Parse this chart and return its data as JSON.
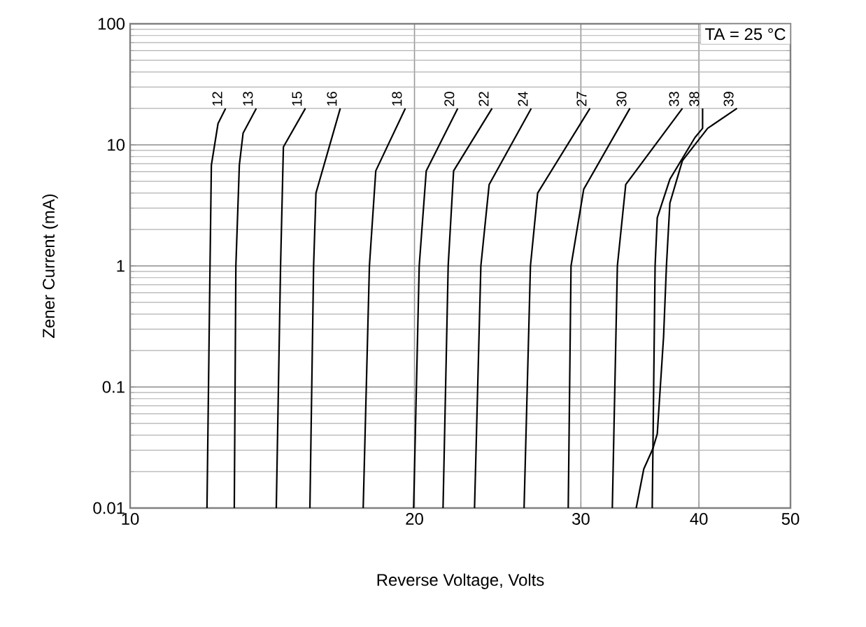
{
  "chart_data": {
    "type": "line",
    "xlabel": "Reverse Voltage, Volts",
    "ylabel": "Zener Current (mA)",
    "annotations": [
      "TA = 25 °C"
    ],
    "log": "xy",
    "grid": true,
    "marker": "none",
    "line_style": "solid",
    "xlim": [
      10,
      50
    ],
    "xticks": [
      10,
      20,
      30,
      40,
      50
    ],
    "ylim": [
      0.01,
      100
    ],
    "yticks": [
      0.01,
      0.1,
      1,
      10,
      100
    ],
    "series": [
      {
        "name": "12",
        "color": "#000000",
        "x": [
          12.06,
          12.15,
          12.19,
          12.39,
          12.62
        ],
        "values": [
          0.01,
          1,
          6.8,
          15,
          20
        ]
      },
      {
        "name": "13",
        "color": "#000000",
        "x": [
          12.89,
          12.94,
          13.05,
          13.17,
          13.6
        ],
        "values": [
          0.01,
          1,
          6.8,
          12.5,
          20
        ]
      },
      {
        "name": "15",
        "color": "#000000",
        "x": [
          14.28,
          14.43,
          14.53,
          15.33
        ],
        "values": [
          0.01,
          1,
          9.6,
          20
        ]
      },
      {
        "name": "16",
        "color": "#000000",
        "x": [
          15.5,
          15.64,
          15.73,
          16.69
        ],
        "values": [
          0.01,
          1,
          4,
          20
        ]
      },
      {
        "name": "18",
        "color": "#000000",
        "x": [
          17.65,
          17.92,
          18.2,
          19.56
        ],
        "values": [
          0.01,
          1,
          6.1,
          20
        ]
      },
      {
        "name": "20",
        "color": "#000000",
        "x": [
          19.96,
          20.23,
          20.58,
          22.22
        ],
        "values": [
          0.01,
          1,
          6.1,
          20
        ]
      },
      {
        "name": "22",
        "color": "#000000",
        "x": [
          21.44,
          21.71,
          22.0,
          24.16
        ],
        "values": [
          0.01,
          1,
          6.1,
          20
        ]
      },
      {
        "name": "24",
        "color": "#000000",
        "x": [
          23.15,
          23.51,
          23.99,
          26.58
        ],
        "values": [
          0.01,
          1,
          4.7,
          20
        ]
      },
      {
        "name": "27",
        "color": "#000000",
        "x": [
          26.12,
          26.53,
          27.0,
          30.67
        ],
        "values": [
          0.01,
          1,
          4,
          20
        ]
      },
      {
        "name": "30",
        "color": "#000000",
        "x": [
          29.09,
          29.29,
          30.21,
          33.81
        ],
        "values": [
          0.01,
          1,
          4.3,
          20
        ]
      },
      {
        "name": "33",
        "color": "#000000",
        "x": [
          32.39,
          32.79,
          33.47,
          38.43
        ],
        "values": [
          0.01,
          1,
          4.7,
          20
        ]
      },
      {
        "name": "38",
        "color": "#000000",
        "x": [
          35.7,
          35.95,
          36.14,
          37.27,
          39.62,
          40.36,
          40.36
        ],
        "values": [
          0.01,
          1,
          2.5,
          5.2,
          11.5,
          13.7,
          20
        ]
      },
      {
        "name": "39",
        "color": "#000000",
        "x": [
          34.33,
          34.97,
          35.76,
          36.14,
          36.7,
          36.96,
          37.27,
          38.43,
          40.86,
          43.89
        ],
        "values": [
          0.01,
          0.021,
          0.031,
          0.041,
          0.26,
          1,
          3.3,
          7.4,
          13.7,
          20
        ]
      }
    ]
  }
}
